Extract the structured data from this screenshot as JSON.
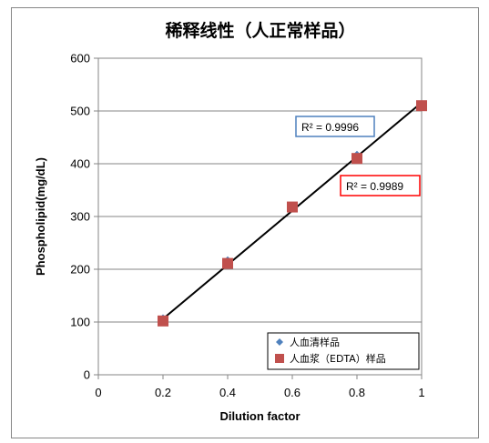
{
  "chart_data": {
    "type": "scatter",
    "title": "稀释线性（人正常样品）",
    "xlabel": "Dilution factor",
    "ylabel": "Phospholipid(mg/dL)",
    "xlim": [
      0,
      1
    ],
    "ylim": [
      0,
      600
    ],
    "x_ticks": [
      "0",
      "0.2",
      "0.4",
      "0.6",
      "0.8",
      "1"
    ],
    "y_ticks": [
      "0",
      "100",
      "200",
      "300",
      "400",
      "500",
      "600"
    ],
    "grid": "horizontal",
    "legend_position": "bottom-right",
    "series": [
      {
        "name": "人血清样品",
        "marker": "diamond",
        "color": "#4f81bd",
        "x": [
          0.2,
          0.4,
          0.6,
          0.8,
          1.0
        ],
        "y": [
          106,
          216,
          316,
          416,
          510
        ],
        "r2_label": "R² = 0.9996",
        "r2_border_color": "#4f81bd"
      },
      {
        "name": "人血浆（EDTA）样品",
        "marker": "square",
        "color": "#c0504d",
        "x": [
          0.2,
          0.4,
          0.6,
          0.8,
          1.0
        ],
        "y": [
          102,
          211,
          318,
          410,
          510
        ],
        "r2_label": "R² = 0.9989",
        "r2_border_color": "#ff0000"
      }
    ],
    "trendline": {
      "x": [
        0.2,
        1.0
      ],
      "y": [
        106,
        516
      ],
      "color": "#000000"
    }
  }
}
